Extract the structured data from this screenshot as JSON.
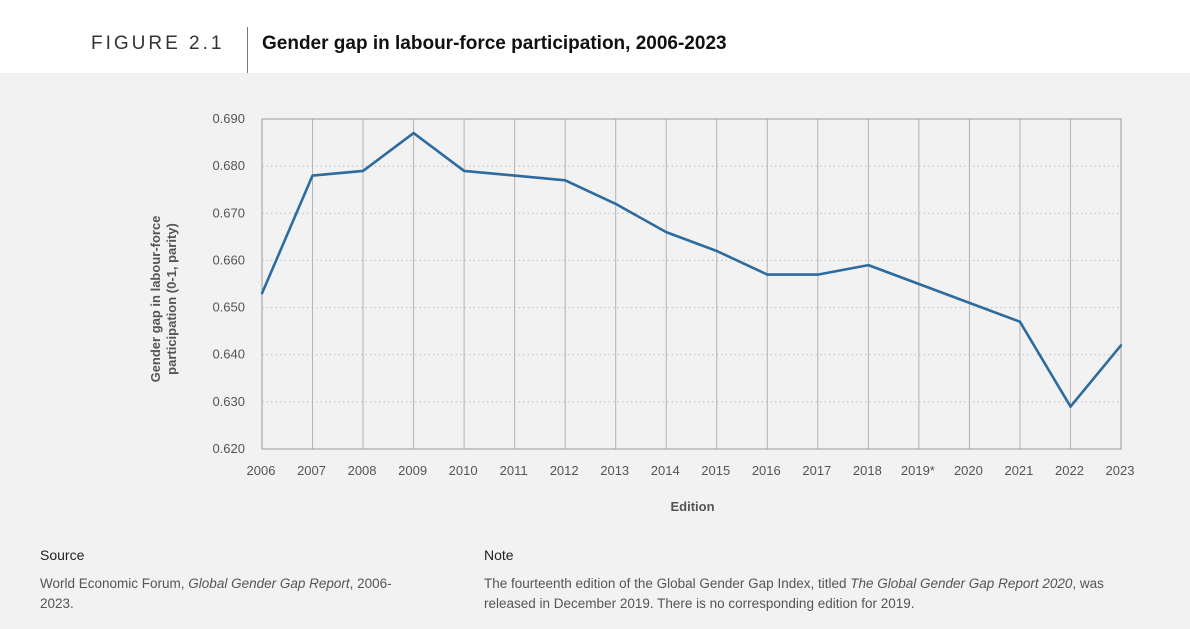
{
  "header": {
    "figure_label": "FIGURE 2.1",
    "title": "Gender gap in labour-force participation, 2006-2023"
  },
  "colors": {
    "line": "#2e6b9e",
    "panel_bg": "#f2f2f2",
    "grid_vertical": "#b3b3b3",
    "grid_horizontal": "#bdbdbd"
  },
  "chart_data": {
    "type": "line",
    "title": "Gender gap in labour-force participation, 2006-2023",
    "xlabel": "Edition",
    "ylabel_lines": [
      "Gender gap in labour-force",
      "participation (0-1, parity)"
    ],
    "categories": [
      "2006",
      "2007",
      "2008",
      "2009",
      "2010",
      "2011",
      "2012",
      "2013",
      "2014",
      "2015",
      "2016",
      "2017",
      "2018",
      "2019*",
      "2020",
      "2021",
      "2022",
      "2023"
    ],
    "series": [
      {
        "values": [
          0.653,
          0.678,
          0.679,
          0.687,
          0.679,
          0.678,
          0.677,
          0.672,
          0.666,
          0.662,
          0.657,
          0.657,
          0.659,
          null,
          0.651,
          0.647,
          0.629,
          0.642
        ]
      }
    ],
    "ylim": [
      0.62,
      0.69
    ],
    "yticks": [
      "0.620",
      "0.630",
      "0.640",
      "0.650",
      "0.660",
      "0.670",
      "0.680",
      "0.690"
    ],
    "grid": true,
    "legend": "none"
  },
  "footer": {
    "source_heading": "Source",
    "source_text_pre": "World Economic Forum, ",
    "source_text_italic": "Global Gender Gap Report",
    "source_text_post": ", 2006-2023.",
    "note_heading": "Note",
    "note_text_pre": "The fourteenth edition of the Global Gender Gap Index, titled ",
    "note_text_italic": "The Global Gender Gap Report 2020",
    "note_text_post": ", was released in December 2019. There is no corresponding edition for 2019."
  }
}
